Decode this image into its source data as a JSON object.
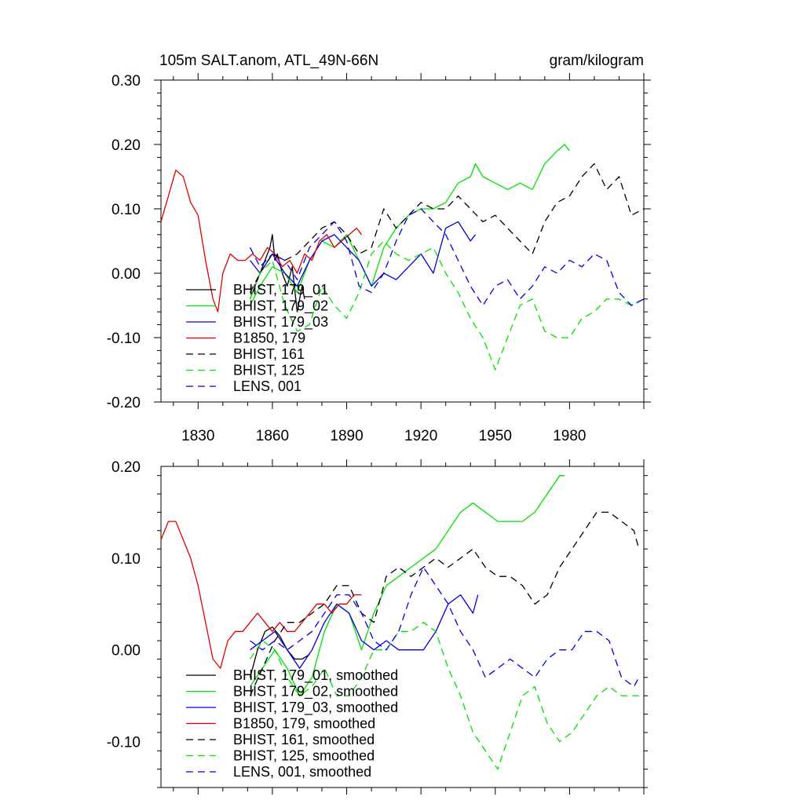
{
  "figure": {
    "title_left": "105m SALT.anom, ATL_49N-66N",
    "title_right": "gram/kilogram"
  },
  "chart_data": [
    {
      "type": "line",
      "grid": false,
      "legend_position": "lower-left",
      "xlim": [
        1815,
        2010
      ],
      "ylim": [
        -0.2,
        0.3
      ],
      "x_ticks": [
        "1830",
        "1860",
        "1890",
        "1920",
        "1950",
        "1980"
      ],
      "y_ticks": [
        "-0.20",
        "-0.10",
        "0.00",
        "0.10",
        "0.20",
        "0.30"
      ],
      "series": [
        {
          "name": "BHIST, 179_01",
          "color": "#000000",
          "dash": "solid",
          "x": [
            1851,
            1853,
            1855,
            1857,
            1859,
            1860,
            1861,
            1862,
            1864,
            1866,
            1868,
            1870,
            1872,
            1873
          ],
          "y": [
            -0.04,
            -0.02,
            0.0,
            0.02,
            0.04,
            0.06,
            0.02,
            0.03,
            0.0,
            -0.02,
            0.01,
            -0.06,
            -0.02,
            -0.04
          ]
        },
        {
          "name": "BHIST, 179_02",
          "color": "#00e000",
          "dash": "solid",
          "x": [
            1851,
            1855,
            1860,
            1865,
            1870,
            1875,
            1880,
            1885,
            1890,
            1895,
            1900,
            1905,
            1910,
            1915,
            1920,
            1925,
            1930,
            1935,
            1940,
            1942,
            1945,
            1950,
            1955,
            1960,
            1965,
            1970,
            1975,
            1978,
            1980
          ],
          "y": [
            -0.05,
            -0.02,
            0.01,
            0.0,
            -0.03,
            0.02,
            0.05,
            0.04,
            0.06,
            0.02,
            -0.02,
            0.04,
            0.07,
            0.09,
            0.1,
            0.1,
            0.11,
            0.14,
            0.15,
            0.17,
            0.15,
            0.14,
            0.13,
            0.14,
            0.13,
            0.17,
            0.19,
            0.2,
            0.19
          ]
        },
        {
          "name": "BHIST, 179_03",
          "color": "#0000e0",
          "dash": "solid",
          "x": [
            1851,
            1855,
            1860,
            1865,
            1870,
            1875,
            1880,
            1885,
            1890,
            1895,
            1900,
            1905,
            1910,
            1915,
            1920,
            1925,
            1930,
            1935,
            1940,
            1942
          ],
          "y": [
            0.02,
            0.0,
            0.03,
            0.0,
            -0.02,
            0.02,
            0.05,
            0.06,
            0.04,
            0.02,
            -0.02,
            0.0,
            -0.01,
            0.01,
            0.03,
            0.0,
            0.07,
            0.08,
            0.05,
            0.06
          ]
        },
        {
          "name": "B1850, 179",
          "color": "#e00000",
          "dash": "solid",
          "x": [
            1815,
            1818,
            1821,
            1824,
            1827,
            1830,
            1833,
            1836,
            1838,
            1840,
            1843,
            1846,
            1849,
            1852,
            1855,
            1858,
            1861,
            1864,
            1867,
            1870,
            1873,
            1876,
            1879,
            1882,
            1885,
            1888,
            1891,
            1894,
            1896
          ],
          "y": [
            0.08,
            0.12,
            0.16,
            0.15,
            0.11,
            0.09,
            0.02,
            -0.04,
            -0.06,
            0.0,
            0.03,
            0.02,
            0.02,
            0.03,
            0.02,
            0.04,
            0.03,
            0.01,
            0.02,
            0.0,
            0.03,
            0.02,
            0.05,
            0.06,
            0.04,
            0.05,
            0.06,
            0.07,
            0.06
          ]
        },
        {
          "name": "BHIST, 161",
          "color": "#000000",
          "dash": "dashed",
          "x": [
            1851,
            1855,
            1860,
            1865,
            1870,
            1875,
            1880,
            1885,
            1890,
            1895,
            1900,
            1905,
            1910,
            1915,
            1920,
            1925,
            1930,
            1935,
            1940,
            1945,
            1950,
            1955,
            1960,
            1965,
            1970,
            1975,
            1980,
            1985,
            1990,
            1995,
            2000,
            2005,
            2010
          ],
          "y": [
            -0.03,
            0.0,
            0.03,
            0.02,
            0.03,
            0.05,
            0.07,
            0.08,
            0.06,
            0.03,
            0.04,
            0.1,
            0.07,
            0.09,
            0.11,
            0.1,
            0.1,
            0.12,
            0.1,
            0.08,
            0.09,
            0.07,
            0.05,
            0.03,
            0.08,
            0.11,
            0.12,
            0.15,
            0.17,
            0.13,
            0.15,
            0.09,
            0.1
          ]
        },
        {
          "name": "BHIST, 125",
          "color": "#00e000",
          "dash": "dashed",
          "x": [
            1851,
            1855,
            1860,
            1865,
            1870,
            1875,
            1880,
            1885,
            1890,
            1895,
            1900,
            1905,
            1910,
            1915,
            1920,
            1925,
            1930,
            1935,
            1940,
            1945,
            1950,
            1955,
            1960,
            1965,
            1970,
            1975,
            1980,
            1985,
            1990,
            1995,
            2000,
            2005,
            2010
          ],
          "y": [
            -0.04,
            0.0,
            0.02,
            -0.05,
            -0.09,
            -0.08,
            -0.02,
            -0.05,
            -0.07,
            -0.03,
            0.03,
            0.05,
            0.03,
            0.02,
            0.03,
            0.04,
            0.0,
            -0.03,
            -0.07,
            -0.1,
            -0.15,
            -0.1,
            -0.05,
            -0.04,
            -0.09,
            -0.1,
            -0.1,
            -0.07,
            -0.06,
            -0.04,
            -0.04,
            -0.05,
            -0.04
          ]
        },
        {
          "name": "LENS, 001",
          "color": "#0000e0",
          "dash": "dashed",
          "x": [
            1851,
            1855,
            1860,
            1865,
            1870,
            1875,
            1880,
            1885,
            1890,
            1895,
            1900,
            1905,
            1910,
            1915,
            1920,
            1925,
            1930,
            1935,
            1940,
            1945,
            1950,
            1955,
            1960,
            1965,
            1970,
            1975,
            1980,
            1985,
            1990,
            1995,
            2000,
            2005,
            2010
          ],
          "y": [
            0.04,
            0.01,
            0.03,
            0.02,
            -0.01,
            0.04,
            0.06,
            0.08,
            0.05,
            -0.02,
            -0.03,
            0.0,
            0.05,
            0.09,
            0.1,
            0.08,
            0.06,
            0.02,
            -0.02,
            -0.05,
            -0.02,
            -0.01,
            -0.04,
            -0.02,
            0.01,
            0.0,
            0.02,
            0.01,
            0.03,
            0.02,
            -0.03,
            -0.05,
            -0.04
          ]
        }
      ]
    },
    {
      "type": "line",
      "grid": false,
      "legend_position": "lower-left",
      "xlim": [
        1815,
        2010
      ],
      "ylim": [
        -0.15,
        0.2
      ],
      "x_ticks": [
        "1830",
        "1860",
        "1890",
        "1920",
        "1950",
        "1980"
      ],
      "y_ticks": [
        "-0.10",
        "0.00",
        "0.10",
        "0.20"
      ],
      "series": [
        {
          "name": "BHIST, 179_01, smoothed",
          "color": "#000000",
          "dash": "solid",
          "x": [
            1851,
            1854,
            1857,
            1860,
            1863,
            1866,
            1869,
            1872,
            1875
          ],
          "y": [
            -0.03,
            0.0,
            0.02,
            0.025,
            0.015,
            0.0,
            -0.01,
            -0.01,
            -0.005
          ]
        },
        {
          "name": "BHIST, 179_02, smoothed",
          "color": "#00e000",
          "dash": "solid",
          "x": [
            1851,
            1856,
            1861,
            1866,
            1871,
            1876,
            1881,
            1886,
            1891,
            1896,
            1901,
            1906,
            1911,
            1916,
            1921,
            1926,
            1931,
            1936,
            1941,
            1946,
            1951,
            1956,
            1961,
            1966,
            1971,
            1976,
            1978
          ],
          "y": [
            -0.04,
            -0.02,
            0.0,
            -0.02,
            -0.05,
            -0.03,
            0.02,
            0.05,
            0.04,
            0.0,
            0.04,
            0.07,
            0.08,
            0.09,
            0.1,
            0.11,
            0.13,
            0.15,
            0.16,
            0.15,
            0.14,
            0.14,
            0.14,
            0.15,
            0.17,
            0.19,
            0.19
          ]
        },
        {
          "name": "BHIST, 179_03, smoothed",
          "color": "#0000e0",
          "dash": "solid",
          "x": [
            1851,
            1856,
            1861,
            1866,
            1871,
            1876,
            1881,
            1886,
            1891,
            1896,
            1901,
            1906,
            1911,
            1916,
            1921,
            1926,
            1931,
            1936,
            1941,
            1943
          ],
          "y": [
            0.0,
            0.01,
            0.02,
            0.0,
            -0.02,
            0.0,
            0.03,
            0.05,
            0.04,
            0.01,
            0.0,
            0.01,
            0.0,
            0.0,
            0.0,
            0.02,
            0.05,
            0.06,
            0.04,
            0.06
          ]
        },
        {
          "name": "B1850, 179, smoothed",
          "color": "#e00000",
          "dash": "solid",
          "x": [
            1815,
            1818,
            1821,
            1824,
            1827,
            1830,
            1833,
            1836,
            1839,
            1842,
            1845,
            1848,
            1851,
            1854,
            1857,
            1860,
            1863,
            1866,
            1869,
            1872,
            1875,
            1878,
            1881,
            1884,
            1887,
            1890,
            1893,
            1896
          ],
          "y": [
            0.12,
            0.14,
            0.14,
            0.12,
            0.1,
            0.07,
            0.03,
            -0.01,
            -0.02,
            0.01,
            0.02,
            0.02,
            0.03,
            0.04,
            0.03,
            0.02,
            0.03,
            0.02,
            0.02,
            0.03,
            0.04,
            0.05,
            0.05,
            0.04,
            0.05,
            0.05,
            0.06,
            0.06
          ]
        },
        {
          "name": "BHIST, 161, smoothed",
          "color": "#000000",
          "dash": "dashed",
          "x": [
            1851,
            1856,
            1861,
            1866,
            1871,
            1876,
            1881,
            1886,
            1891,
            1896,
            1901,
            1906,
            1911,
            1916,
            1921,
            1926,
            1931,
            1936,
            1941,
            1946,
            1951,
            1956,
            1961,
            1966,
            1971,
            1976,
            1981,
            1986,
            1991,
            1996,
            2001,
            2006,
            2008
          ],
          "y": [
            -0.05,
            -0.02,
            0.01,
            0.03,
            0.03,
            0.04,
            0.05,
            0.07,
            0.07,
            0.04,
            0.03,
            0.08,
            0.09,
            0.08,
            0.09,
            0.1,
            0.09,
            0.1,
            0.11,
            0.09,
            0.08,
            0.08,
            0.07,
            0.05,
            0.06,
            0.09,
            0.11,
            0.13,
            0.15,
            0.15,
            0.14,
            0.13,
            0.11
          ]
        },
        {
          "name": "BHIST, 125, smoothed",
          "color": "#00e000",
          "dash": "dashed",
          "x": [
            1851,
            1856,
            1861,
            1866,
            1871,
            1876,
            1881,
            1886,
            1891,
            1896,
            1901,
            1906,
            1911,
            1916,
            1921,
            1926,
            1931,
            1936,
            1941,
            1946,
            1951,
            1956,
            1961,
            1966,
            1971,
            1976,
            1981,
            1986,
            1991,
            1996,
            2001,
            2006,
            2008
          ],
          "y": [
            -0.01,
            0.01,
            0.0,
            -0.03,
            -0.05,
            -0.04,
            -0.02,
            -0.05,
            -0.05,
            -0.03,
            0.0,
            0.0,
            0.02,
            0.02,
            0.03,
            0.02,
            -0.02,
            -0.05,
            -0.09,
            -0.11,
            -0.13,
            -0.09,
            -0.05,
            -0.04,
            -0.08,
            -0.1,
            -0.09,
            -0.07,
            -0.05,
            -0.04,
            -0.05,
            -0.05,
            -0.05
          ]
        },
        {
          "name": "LENS, 001, smoothed",
          "color": "#0000e0",
          "dash": "dashed",
          "x": [
            1851,
            1856,
            1861,
            1866,
            1871,
            1876,
            1881,
            1886,
            1891,
            1896,
            1901,
            1906,
            1911,
            1916,
            1921,
            1926,
            1931,
            1936,
            1941,
            1946,
            1951,
            1956,
            1961,
            1966,
            1971,
            1976,
            1981,
            1986,
            1991,
            1996,
            2001,
            2006,
            2008
          ],
          "y": [
            0.01,
            0.0,
            0.01,
            0.0,
            0.01,
            0.02,
            0.04,
            0.06,
            0.06,
            0.04,
            0.01,
            0.0,
            0.02,
            0.06,
            0.09,
            0.07,
            0.05,
            0.02,
            0.0,
            -0.03,
            -0.02,
            -0.01,
            -0.02,
            -0.03,
            -0.01,
            0.0,
            0.0,
            0.02,
            0.02,
            0.01,
            -0.03,
            -0.04,
            -0.03
          ]
        }
      ]
    }
  ]
}
